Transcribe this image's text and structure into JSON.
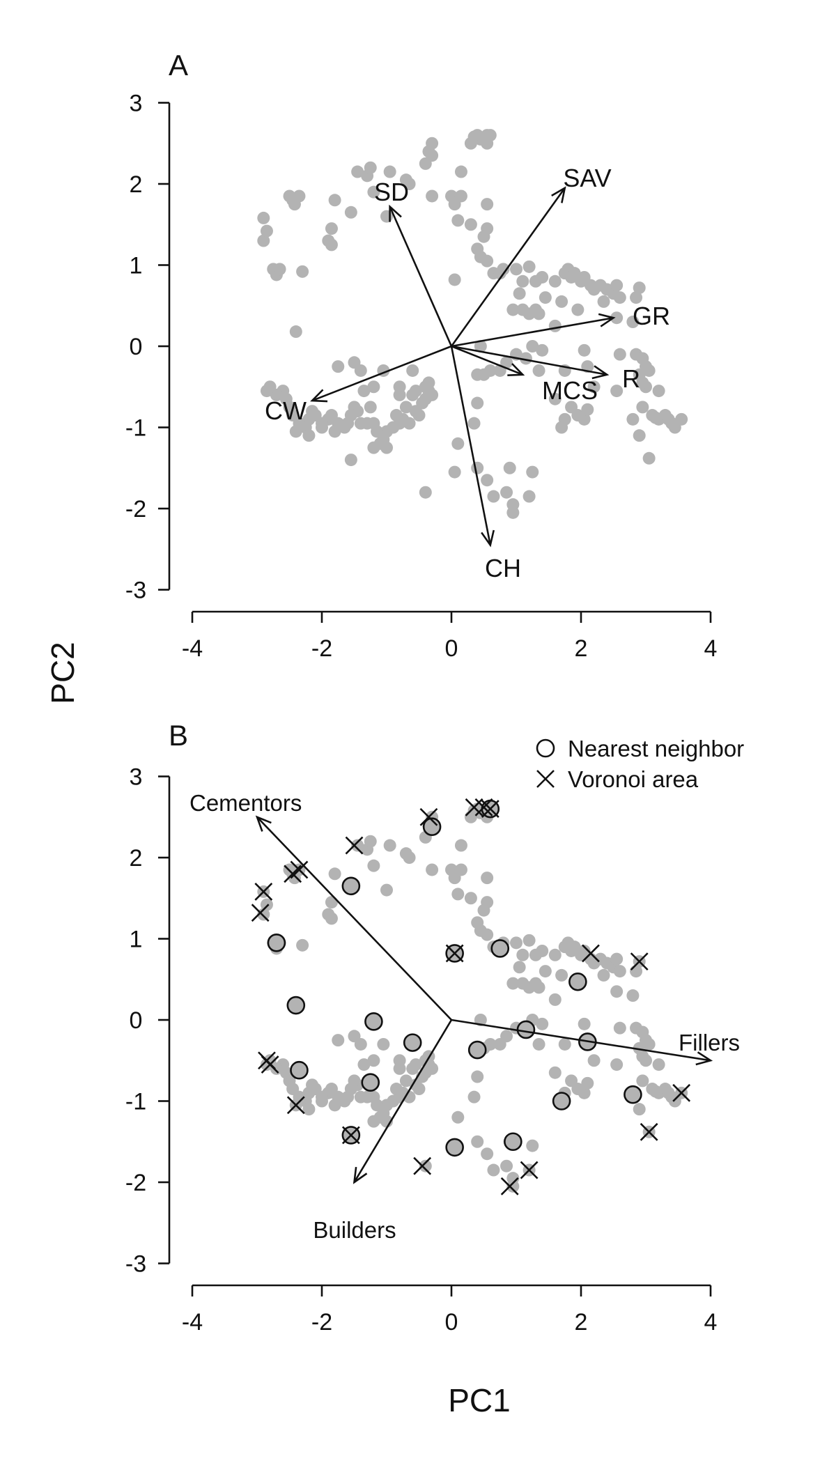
{
  "chart_data": [
    {
      "type": "scatter",
      "panel": "A",
      "ylabel": "PC2",
      "xlim": [
        -4,
        4
      ],
      "ylim": [
        -3,
        3
      ],
      "x_ticks": [
        -4,
        -2,
        0,
        2,
        4
      ],
      "y_ticks": [
        -3,
        -2,
        -1,
        0,
        1,
        2,
        3
      ],
      "point_color": "#b3b3b3",
      "points": [
        [
          -2.9,
          1.3
        ],
        [
          -2.85,
          1.42
        ],
        [
          -2.9,
          1.58
        ],
        [
          -2.75,
          0.95
        ],
        [
          -2.7,
          0.88
        ],
        [
          -2.65,
          0.95
        ],
        [
          -2.3,
          0.92
        ],
        [
          -2.5,
          1.85
        ],
        [
          -2.45,
          1.8
        ],
        [
          -2.42,
          1.75
        ],
        [
          -2.35,
          1.85
        ],
        [
          -1.85,
          1.45
        ],
        [
          -1.9,
          1.3
        ],
        [
          -1.85,
          1.25
        ],
        [
          -1.8,
          1.8
        ],
        [
          -1.55,
          1.65
        ],
        [
          -1.45,
          2.15
        ],
        [
          -1.3,
          2.1
        ],
        [
          -1.25,
          2.2
        ],
        [
          -1.2,
          1.9
        ],
        [
          -1.0,
          1.6
        ],
        [
          -0.95,
          2.15
        ],
        [
          -0.7,
          2.05
        ],
        [
          -0.65,
          2.0
        ],
        [
          -0.4,
          2.25
        ],
        [
          -0.35,
          2.4
        ],
        [
          -0.3,
          2.5
        ],
        [
          -0.3,
          1.85
        ],
        [
          -0.3,
          2.35
        ],
        [
          0.0,
          1.85
        ],
        [
          0.05,
          1.75
        ],
        [
          0.15,
          1.85
        ],
        [
          0.15,
          2.15
        ],
        [
          0.1,
          1.55
        ],
        [
          0.3,
          2.5
        ],
        [
          0.35,
          2.58
        ],
        [
          0.4,
          2.6
        ],
        [
          0.45,
          2.55
        ],
        [
          0.5,
          2.55
        ],
        [
          0.55,
          2.6
        ],
        [
          0.6,
          2.6
        ],
        [
          0.55,
          2.5
        ],
        [
          0.3,
          1.5
        ],
        [
          0.4,
          1.2
        ],
        [
          0.45,
          1.1
        ],
        [
          0.55,
          1.05
        ],
        [
          0.55,
          1.45
        ],
        [
          0.55,
          1.75
        ],
        [
          0.5,
          1.35
        ],
        [
          0.65,
          0.9
        ],
        [
          0.75,
          0.9
        ],
        [
          0.05,
          0.82
        ],
        [
          0.8,
          0.95
        ],
        [
          1.0,
          0.95
        ],
        [
          1.05,
          0.65
        ],
        [
          1.1,
          0.8
        ],
        [
          1.2,
          0.98
        ],
        [
          1.3,
          0.8
        ],
        [
          1.4,
          0.85
        ],
        [
          1.45,
          0.6
        ],
        [
          1.3,
          0.45
        ],
        [
          1.35,
          0.4
        ],
        [
          1.2,
          0.4
        ],
        [
          1.1,
          0.45
        ],
        [
          0.95,
          0.45
        ],
        [
          1.6,
          0.8
        ],
        [
          1.75,
          0.9
        ],
        [
          1.85,
          0.85
        ],
        [
          1.8,
          0.95
        ],
        [
          1.9,
          0.9
        ],
        [
          2.0,
          0.8
        ],
        [
          2.05,
          0.85
        ],
        [
          2.15,
          0.75
        ],
        [
          2.2,
          0.7
        ],
        [
          2.3,
          0.75
        ],
        [
          2.4,
          0.7
        ],
        [
          2.5,
          0.65
        ],
        [
          2.6,
          0.6
        ],
        [
          2.55,
          0.75
        ],
        [
          2.85,
          0.6
        ],
        [
          2.9,
          0.72
        ],
        [
          1.7,
          0.55
        ],
        [
          1.95,
          0.45
        ],
        [
          2.35,
          0.55
        ],
        [
          2.55,
          0.35
        ],
        [
          2.8,
          0.3
        ],
        [
          1.6,
          0.25
        ],
        [
          2.05,
          -0.05
        ],
        [
          2.1,
          -0.25
        ],
        [
          2.6,
          -0.1
        ],
        [
          2.2,
          -0.5
        ],
        [
          2.55,
          -0.55
        ],
        [
          2.85,
          -0.1
        ],
        [
          2.95,
          -0.15
        ],
        [
          3.0,
          -0.25
        ],
        [
          3.05,
          -0.3
        ],
        [
          2.9,
          -0.35
        ],
        [
          3.0,
          -0.5
        ],
        [
          2.95,
          -0.45
        ],
        [
          3.2,
          -0.55
        ],
        [
          2.8,
          -0.9
        ],
        [
          2.95,
          -0.75
        ],
        [
          3.1,
          -0.85
        ],
        [
          3.15,
          -0.88
        ],
        [
          3.2,
          -0.9
        ],
        [
          3.3,
          -0.85
        ],
        [
          3.35,
          -0.9
        ],
        [
          3.4,
          -0.95
        ],
        [
          3.45,
          -1.0
        ],
        [
          3.55,
          -0.9
        ],
        [
          2.9,
          -1.1
        ],
        [
          3.05,
          -1.38
        ],
        [
          1.75,
          -0.3
        ],
        [
          1.6,
          -0.65
        ],
        [
          1.75,
          -0.9
        ],
        [
          1.85,
          -0.75
        ],
        [
          1.95,
          -0.85
        ],
        [
          2.05,
          -0.9
        ],
        [
          2.1,
          -0.78
        ],
        [
          1.7,
          -1.0
        ],
        [
          1.35,
          -0.3
        ],
        [
          1.4,
          -0.05
        ],
        [
          1.25,
          0.0
        ],
        [
          1.15,
          -0.15
        ],
        [
          1.0,
          -0.1
        ],
        [
          0.85,
          -0.2
        ],
        [
          0.75,
          -0.3
        ],
        [
          0.6,
          -0.3
        ],
        [
          0.5,
          -0.35
        ],
        [
          0.4,
          -0.35
        ],
        [
          0.45,
          0.0
        ],
        [
          0.4,
          -0.7
        ],
        [
          0.35,
          -0.95
        ],
        [
          0.1,
          -1.2
        ],
        [
          0.05,
          -1.55
        ],
        [
          0.4,
          -1.5
        ],
        [
          0.55,
          -1.65
        ],
        [
          0.65,
          -1.85
        ],
        [
          0.9,
          -1.5
        ],
        [
          0.85,
          -1.8
        ],
        [
          0.95,
          -1.95
        ],
        [
          0.95,
          -2.05
        ],
        [
          1.2,
          -1.85
        ],
        [
          1.25,
          -1.55
        ],
        [
          -0.35,
          -0.45
        ],
        [
          -0.35,
          -0.55
        ],
        [
          -0.4,
          -0.65
        ],
        [
          -0.45,
          -0.7
        ],
        [
          -0.5,
          -0.85
        ],
        [
          -0.55,
          -0.8
        ],
        [
          -0.6,
          -0.6
        ],
        [
          -0.65,
          -0.95
        ],
        [
          -0.75,
          -0.9
        ],
        [
          -0.8,
          -0.95
        ],
        [
          -0.85,
          -0.85
        ],
        [
          -0.9,
          -1.0
        ],
        [
          -1.0,
          -1.05
        ],
        [
          -1.05,
          -1.15
        ],
        [
          -1.1,
          -1.2
        ],
        [
          -1.15,
          -1.05
        ],
        [
          -1.2,
          -0.95
        ],
        [
          -1.25,
          -0.75
        ],
        [
          -1.3,
          -0.95
        ],
        [
          -1.35,
          -0.55
        ],
        [
          -1.4,
          -0.95
        ],
        [
          -1.45,
          -0.8
        ],
        [
          -1.5,
          -0.75
        ],
        [
          -1.55,
          -0.85
        ],
        [
          -1.6,
          -0.95
        ],
        [
          -1.65,
          -1.0
        ],
        [
          -1.75,
          -0.95
        ],
        [
          -1.8,
          -1.05
        ],
        [
          -1.85,
          -0.85
        ],
        [
          -1.9,
          -0.9
        ],
        [
          -2.0,
          -0.95
        ],
        [
          -2.1,
          -0.85
        ],
        [
          -2.15,
          -0.8
        ],
        [
          -2.2,
          -0.9
        ],
        [
          -2.25,
          -1.0
        ],
        [
          -2.35,
          -0.95
        ],
        [
          -2.45,
          -0.85
        ],
        [
          -2.5,
          -0.75
        ],
        [
          -2.55,
          -0.65
        ],
        [
          -2.6,
          -0.55
        ],
        [
          -2.7,
          -0.6
        ],
        [
          -2.8,
          -0.5
        ],
        [
          -2.85,
          -0.55
        ],
        [
          -2.4,
          -1.05
        ],
        [
          -2.2,
          -1.1
        ],
        [
          -2.0,
          -1.0
        ],
        [
          -1.75,
          -0.25
        ],
        [
          -1.5,
          -0.2
        ],
        [
          -1.4,
          -0.3
        ],
        [
          -1.2,
          -0.5
        ],
        [
          -1.05,
          -0.3
        ],
        [
          -0.8,
          -0.5
        ],
        [
          -0.6,
          -0.3
        ],
        [
          -0.55,
          -0.55
        ],
        [
          -0.4,
          -0.5
        ],
        [
          -1.55,
          -1.4
        ],
        [
          -1.2,
          -1.25
        ],
        [
          -1.0,
          -1.25
        ],
        [
          -0.4,
          -1.8
        ],
        [
          -2.4,
          0.18
        ],
        [
          -0.8,
          -0.6
        ],
        [
          -0.7,
          -0.75
        ],
        [
          -0.3,
          -0.6
        ]
      ],
      "loadings": [
        {
          "label": "SD",
          "x": -0.95,
          "y": 1.72
        },
        {
          "label": "SAV",
          "x": 1.75,
          "y": 1.95
        },
        {
          "label": "GR",
          "x": 2.5,
          "y": 0.35
        },
        {
          "label": "R",
          "x": 2.4,
          "y": -0.35
        },
        {
          "label": "MCS",
          "x": 1.1,
          "y": -0.35
        },
        {
          "label": "CW",
          "x": -2.15,
          "y": -0.67
        },
        {
          "label": "CH",
          "x": 0.6,
          "y": -2.45
        }
      ]
    },
    {
      "type": "scatter",
      "panel": "B",
      "xlabel": "PC1",
      "xlim": [
        -4,
        4
      ],
      "ylim": [
        -3,
        3
      ],
      "x_ticks": [
        -4,
        -2,
        0,
        2,
        4
      ],
      "y_ticks": [
        -3,
        -2,
        -1,
        0,
        1,
        2,
        3
      ],
      "point_color": "#b3b3b3",
      "legend": {
        "position": "top-right",
        "items": [
          {
            "marker": "circle",
            "label": "Nearest neighbor"
          },
          {
            "marker": "cross",
            "label": "Voronoi area"
          }
        ]
      },
      "nearest_neighbor": [
        [
          -0.3,
          2.38
        ],
        [
          0.6,
          2.6
        ],
        [
          -1.55,
          1.65
        ],
        [
          -2.7,
          0.95
        ],
        [
          0.05,
          0.82
        ],
        [
          0.75,
          0.88
        ],
        [
          1.95,
          0.47
        ],
        [
          -2.4,
          0.18
        ],
        [
          -1.2,
          -0.02
        ],
        [
          -0.6,
          -0.28
        ],
        [
          1.15,
          -0.12
        ],
        [
          2.1,
          -0.27
        ],
        [
          0.4,
          -0.37
        ],
        [
          -2.35,
          -0.62
        ],
        [
          -1.25,
          -0.77
        ],
        [
          1.7,
          -1.0
        ],
        [
          2.8,
          -0.92
        ],
        [
          -1.55,
          -1.42
        ],
        [
          0.05,
          -1.57
        ],
        [
          0.95,
          -1.5
        ]
      ],
      "voronoi_area": [
        [
          -0.35,
          2.5
        ],
        [
          0.35,
          2.62
        ],
        [
          0.5,
          2.62
        ],
        [
          0.6,
          2.6
        ],
        [
          -1.5,
          2.15
        ],
        [
          -2.45,
          1.8
        ],
        [
          -2.35,
          1.85
        ],
        [
          -2.9,
          1.58
        ],
        [
          -2.95,
          1.32
        ],
        [
          0.05,
          0.82
        ],
        [
          2.15,
          0.82
        ],
        [
          2.9,
          0.72
        ],
        [
          -2.85,
          -0.5
        ],
        [
          -2.8,
          -0.55
        ],
        [
          -2.4,
          -1.05
        ],
        [
          -1.55,
          -1.42
        ],
        [
          -0.45,
          -1.8
        ],
        [
          0.9,
          -2.05
        ],
        [
          1.2,
          -1.85
        ],
        [
          3.05,
          -1.38
        ],
        [
          3.55,
          -0.9
        ]
      ],
      "vectors": [
        {
          "label": "Cementors",
          "x": -3.0,
          "y": 2.5
        },
        {
          "label": "Fillers",
          "x": 4.0,
          "y": -0.5
        },
        {
          "label": "Builders",
          "x": -1.5,
          "y": -2.0
        }
      ]
    }
  ],
  "panel_a_label": "A",
  "panel_b_label": "B",
  "axis_titles": {
    "y": "PC2",
    "x": "PC1"
  },
  "legend": {
    "nearest_neighbor": "Nearest neighbor",
    "voronoi_area": "Voronoi area"
  }
}
